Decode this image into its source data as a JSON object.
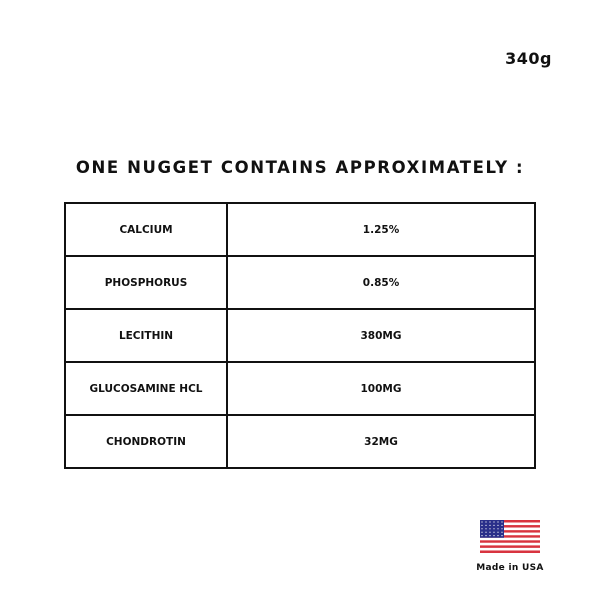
{
  "weight": "340g",
  "title": "ONE NUGGET CONTAINS APPROXIMATELY :",
  "rows": [
    {
      "name": "CALCIUM",
      "value": "1.25%"
    },
    {
      "name": "PHOSPHORUS",
      "value": "0.85%"
    },
    {
      "name": "LECITHIN",
      "value": "380MG"
    },
    {
      "name": "GLUCOSAMINE HCL",
      "value": "100MG"
    },
    {
      "name": "CHONDROTIN",
      "value": "32MG"
    }
  ],
  "origin": {
    "icon": "us-flag-icon",
    "label": "Made in USA"
  },
  "colors": {
    "flag_red": "#d8343f",
    "flag_blue": "#2a2f8a"
  }
}
